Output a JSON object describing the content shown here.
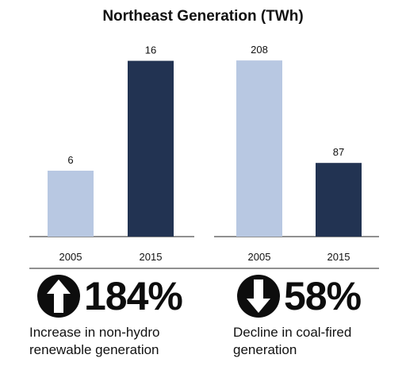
{
  "chart_data": [
    {
      "type": "bar",
      "title": "Northeast Generation (TWh)",
      "categories": [
        "2005",
        "2015"
      ],
      "values": [
        6,
        16
      ],
      "ylim": [
        0,
        18.5
      ],
      "colors": [
        "#b8c8e2",
        "#223352"
      ]
    },
    {
      "type": "bar",
      "title": "",
      "categories": [
        "2005",
        "2015"
      ],
      "values": [
        208,
        87
      ],
      "ylim": [
        0,
        240
      ],
      "colors": [
        "#b8c8e2",
        "#223352"
      ]
    }
  ],
  "stats": [
    {
      "direction": "up",
      "icon": "up-arrow-circle-icon",
      "value": "184%",
      "caption_line1": "Increase in non-hydro",
      "caption_line2": "renewable generation"
    },
    {
      "direction": "down",
      "icon": "down-arrow-circle-icon",
      "value": "58%",
      "caption_line1": "Decline in coal-fired",
      "caption_line2": "generation"
    }
  ]
}
